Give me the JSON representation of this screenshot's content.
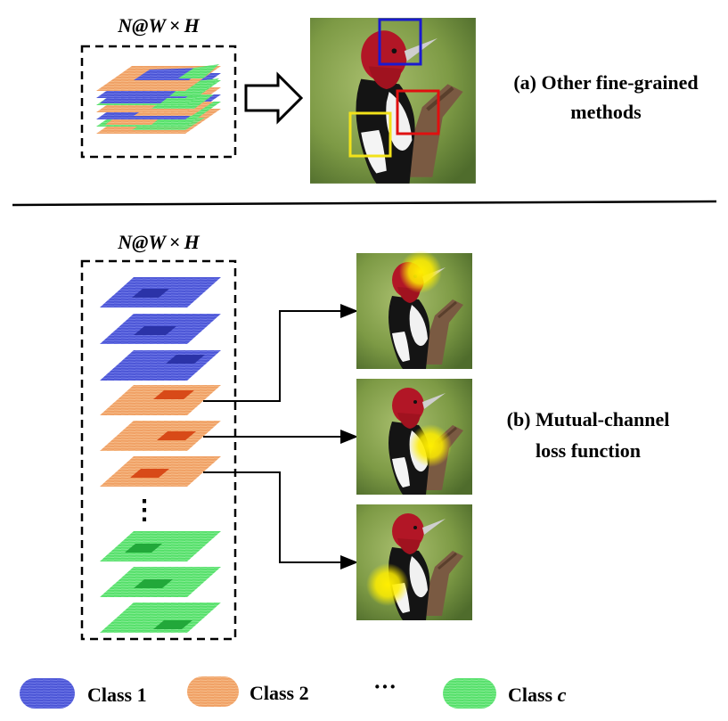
{
  "colors": {
    "class1": "#4b55d6",
    "class1_dark": "#2b33a8",
    "class2": "#f0a064",
    "class2_dark": "#d84a18",
    "classc": "#55e06a",
    "classc_dark": "#22a83a",
    "box_blue": "#1a1ad0",
    "box_red": "#e01010",
    "box_yellow": "#f2e21a",
    "bird_background": "#7d9a45",
    "highlight": "#ffee00"
  },
  "part_a": {
    "stack_label_prefix": "N@",
    "stack_label_w": "W",
    "stack_label_times": "×",
    "stack_label_h": "H",
    "caption_line1": "(a) Other fine-grained",
    "caption_line2": "methods"
  },
  "part_b": {
    "stack_label_prefix": "N@",
    "stack_label_w": "W",
    "stack_label_times": "×",
    "stack_label_h": "H",
    "ellipsis": "⋮",
    "caption_line1": "(b) Mutual-channel",
    "caption_line2": "loss function"
  },
  "legend": {
    "class1_label": "Class 1",
    "class2_label": "Class 2",
    "dots": "···",
    "classc_prefix": "Class ",
    "classc_var": "c"
  }
}
